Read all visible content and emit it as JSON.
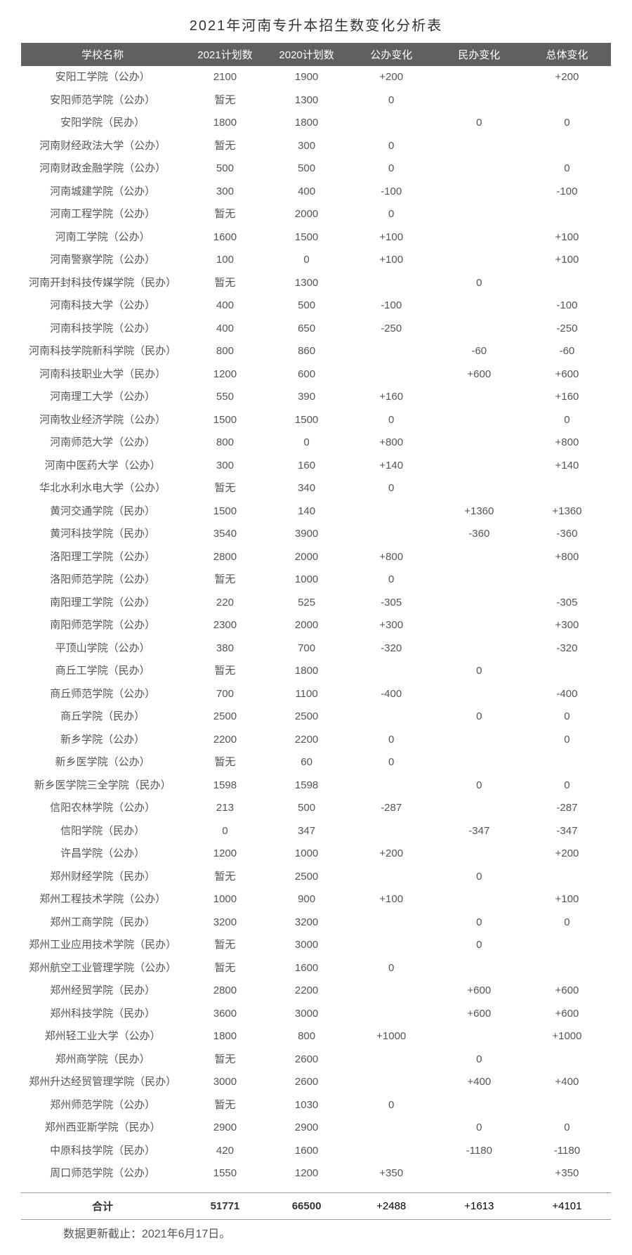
{
  "title": "2021年河南专升本招生数变化分析表",
  "headers": [
    "学校名称",
    "2021计划数",
    "2020计划数",
    "公办变化",
    "民办变化",
    "总体变化"
  ],
  "rows": [
    [
      "安阳工学院（公办）",
      "2100",
      "1900",
      "+200",
      "",
      "+200"
    ],
    [
      "安阳师范学院（公办）",
      "暂无",
      "1300",
      "0",
      "",
      ""
    ],
    [
      "安阳学院（民办）",
      "1800",
      "1800",
      "",
      "0",
      "0"
    ],
    [
      "河南财经政法大学（公办）",
      "暂无",
      "300",
      "0",
      "",
      ""
    ],
    [
      "河南财政金融学院（公办）",
      "500",
      "500",
      "0",
      "",
      "0"
    ],
    [
      "河南城建学院（公办）",
      "300",
      "400",
      "-100",
      "",
      "-100"
    ],
    [
      "河南工程学院（公办）",
      "暂无",
      "2000",
      "0",
      "",
      ""
    ],
    [
      "河南工学院（公办）",
      "1600",
      "1500",
      "+100",
      "",
      "+100"
    ],
    [
      "河南警察学院（公办）",
      "100",
      "0",
      "+100",
      "",
      "+100"
    ],
    [
      "河南开封科技传媒学院（民办）",
      "暂无",
      "1300",
      "",
      "0",
      ""
    ],
    [
      "河南科技大学（公办）",
      "400",
      "500",
      "-100",
      "",
      "-100"
    ],
    [
      "河南科技学院（公办）",
      "400",
      "650",
      "-250",
      "",
      "-250"
    ],
    [
      "河南科技学院新科学院（民办）",
      "800",
      "860",
      "",
      "-60",
      "-60"
    ],
    [
      "河南科技职业大学（民办）",
      "1200",
      "600",
      "",
      "+600",
      "+600"
    ],
    [
      "河南理工大学（公办）",
      "550",
      "390",
      "+160",
      "",
      "+160"
    ],
    [
      "河南牧业经济学院（公办）",
      "1500",
      "1500",
      "0",
      "",
      "0"
    ],
    [
      "河南师范大学（公办）",
      "800",
      "0",
      "+800",
      "",
      "+800"
    ],
    [
      "河南中医药大学（公办）",
      "300",
      "160",
      "+140",
      "",
      "+140"
    ],
    [
      "华北水利水电大学（公办）",
      "暂无",
      "340",
      "0",
      "",
      ""
    ],
    [
      "黄河交通学院（民办）",
      "1500",
      "140",
      "",
      "+1360",
      "+1360"
    ],
    [
      "黄河科技学院（民办）",
      "3540",
      "3900",
      "",
      "-360",
      "-360"
    ],
    [
      "洛阳理工学院（公办）",
      "2800",
      "2000",
      "+800",
      "",
      "+800"
    ],
    [
      "洛阳师范学院（公办）",
      "暂无",
      "1000",
      "0",
      "",
      ""
    ],
    [
      "南阳理工学院（公办）",
      "220",
      "525",
      "-305",
      "",
      "-305"
    ],
    [
      "南阳师范学院（公办）",
      "2300",
      "2000",
      "+300",
      "",
      "+300"
    ],
    [
      "平顶山学院（公办）",
      "380",
      "700",
      "-320",
      "",
      "-320"
    ],
    [
      "商丘工学院（民办）",
      "暂无",
      "1800",
      "",
      "0",
      ""
    ],
    [
      "商丘师范学院（公办）",
      "700",
      "1100",
      "-400",
      "",
      "-400"
    ],
    [
      "商丘学院（民办）",
      "2500",
      "2500",
      "",
      "0",
      "0"
    ],
    [
      "新乡学院（公办）",
      "2200",
      "2200",
      "0",
      "",
      "0"
    ],
    [
      "新乡医学院（公办）",
      "暂无",
      "60",
      "0",
      "",
      ""
    ],
    [
      "新乡医学院三全学院（民办）",
      "1598",
      "1598",
      "",
      "0",
      "0"
    ],
    [
      "信阳农林学院（公办）",
      "213",
      "500",
      "-287",
      "",
      "-287"
    ],
    [
      "信阳学院（民办）",
      "0",
      "347",
      "",
      "-347",
      "-347"
    ],
    [
      "许昌学院（公办）",
      "1200",
      "1000",
      "+200",
      "",
      "+200"
    ],
    [
      "郑州财经学院（民办）",
      "暂无",
      "2500",
      "",
      "0",
      ""
    ],
    [
      "郑州工程技术学院（公办）",
      "1000",
      "900",
      "+100",
      "",
      "+100"
    ],
    [
      "郑州工商学院（民办）",
      "3200",
      "3200",
      "",
      "0",
      "0"
    ],
    [
      "郑州工业应用技术学院（民办）",
      "暂无",
      "3000",
      "",
      "0",
      ""
    ],
    [
      "郑州航空工业管理学院（公办）",
      "暂无",
      "1600",
      "0",
      "",
      ""
    ],
    [
      "郑州经贸学院（民办）",
      "2800",
      "2200",
      "",
      "+600",
      "+600"
    ],
    [
      "郑州科技学院（民办）",
      "3600",
      "3000",
      "",
      "+600",
      "+600"
    ],
    [
      "郑州轻工业大学（公办）",
      "1800",
      "800",
      "+1000",
      "",
      "+1000"
    ],
    [
      "郑州商学院（民办）",
      "暂无",
      "2600",
      "",
      "0",
      ""
    ],
    [
      "郑州升达经贸管理学院（民办）",
      "3000",
      "2600",
      "",
      "+400",
      "+400"
    ],
    [
      "郑州师范学院（公办）",
      "暂无",
      "1030",
      "0",
      "",
      ""
    ],
    [
      "郑州西亚斯学院（民办）",
      "2900",
      "2900",
      "",
      "0",
      "0"
    ],
    [
      "中原科技学院（民办）",
      "420",
      "1600",
      "",
      "-1180",
      "-1180"
    ],
    [
      "周口师范学院（公办）",
      "1550",
      "1200",
      "+350",
      "",
      "+350"
    ]
  ],
  "total": {
    "label": "合计",
    "plan2021": "51771",
    "plan2020": "66500",
    "publicChange": "+2488",
    "privateChange": "+1613",
    "totalChange": "+4101"
  },
  "footnote": "数据更新截止：2021年6月17日。"
}
